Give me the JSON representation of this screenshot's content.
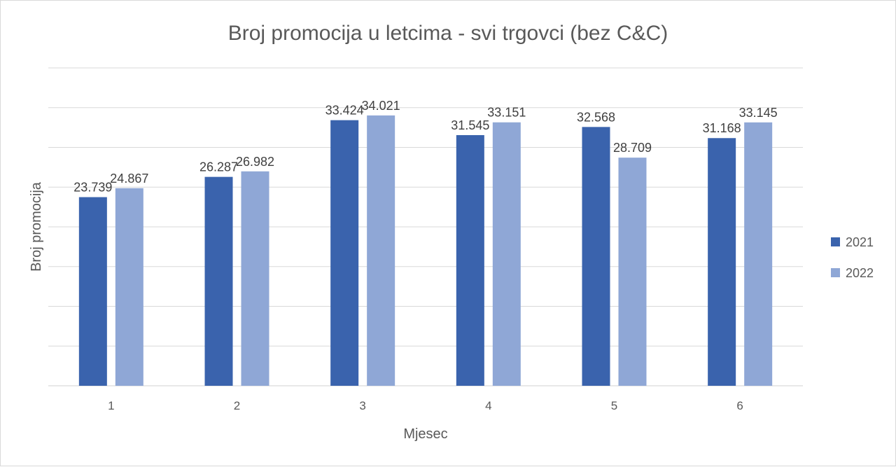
{
  "chart_data": {
    "type": "bar",
    "title": "Broj promocija u letcima - svi trgovci (bez C&C)",
    "xlabel": "Mjesec",
    "ylabel": "Broj promocija",
    "categories": [
      "1",
      "2",
      "3",
      "4",
      "5",
      "6"
    ],
    "series": [
      {
        "name": "2021",
        "color": "#3a63ad",
        "values": [
          23739,
          26287,
          33424,
          31545,
          32568,
          31168
        ],
        "labels": [
          "23.739",
          "26.287",
          "33.424",
          "31.545",
          "32.568",
          "31.168"
        ]
      },
      {
        "name": "2022",
        "color": "#8fa7d6",
        "values": [
          24867,
          26982,
          34021,
          33151,
          28709,
          33145
        ],
        "labels": [
          "24.867",
          "26.982",
          "34.021",
          "33.151",
          "28.709",
          "33.145"
        ]
      }
    ],
    "ylim": [
      0,
      40000
    ],
    "grid": true,
    "legend_position": "right"
  }
}
